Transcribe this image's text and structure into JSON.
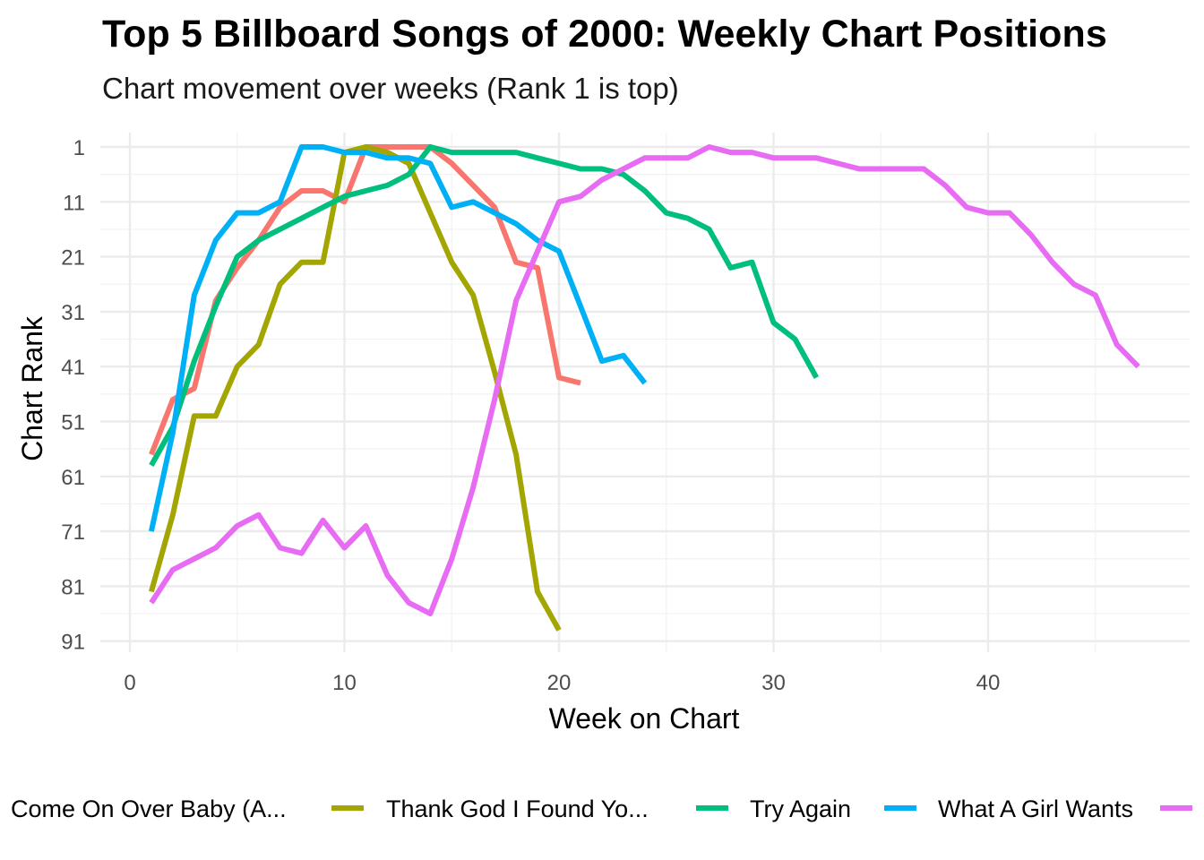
{
  "chart_data": {
    "type": "line",
    "title": "Top 5 Billboard Songs of 2000: Weekly Chart Positions",
    "subtitle": "Chart movement over weeks (Rank 1 is top)",
    "xlabel": "Week on Chart",
    "ylabel": "Chart Rank",
    "xlim": [
      -1,
      49
    ],
    "ylim": [
      93,
      -1
    ],
    "y_reversed": true,
    "x_ticks": [
      0,
      10,
      20,
      30,
      40
    ],
    "y_ticks": [
      1,
      11,
      21,
      31,
      41,
      51,
      61,
      71,
      81,
      91
    ],
    "grid": true,
    "legend_position": "bottom",
    "series": [
      {
        "name": "Come On Over Baby (A...",
        "color": "#F8766D",
        "x": [
          1,
          2,
          3,
          4,
          5,
          6,
          7,
          8,
          9,
          10,
          11,
          12,
          13,
          14,
          15,
          16,
          17,
          18,
          19,
          20,
          21
        ],
        "y": [
          57,
          47,
          45,
          29,
          23,
          18,
          12,
          9,
          9,
          11,
          1,
          1,
          1,
          1,
          4,
          8,
          12,
          22,
          23,
          43,
          44
        ]
      },
      {
        "name": "Thank God I Found Yo...",
        "color": "#A3A500",
        "x": [
          1,
          2,
          3,
          4,
          5,
          6,
          7,
          8,
          9,
          10,
          11,
          12,
          13,
          14,
          15,
          16,
          17,
          18,
          19,
          20
        ],
        "y": [
          82,
          68,
          50,
          50,
          41,
          37,
          26,
          22,
          22,
          2,
          1,
          2,
          4,
          13,
          22,
          28,
          42,
          57,
          82,
          89
        ]
      },
      {
        "name": "Try Again",
        "color": "#00BF7D",
        "x": [
          1,
          2,
          3,
          4,
          5,
          6,
          7,
          8,
          9,
          10,
          11,
          12,
          13,
          14,
          15,
          16,
          17,
          18,
          19,
          20,
          21,
          22,
          23,
          24,
          25,
          26,
          27,
          28,
          29,
          30,
          31,
          32
        ],
        "y": [
          59,
          52,
          40,
          30,
          21,
          18,
          16,
          14,
          12,
          10,
          9,
          8,
          6,
          1,
          2,
          2,
          2,
          2,
          3,
          4,
          5,
          5,
          6,
          9,
          13,
          14,
          16,
          23,
          22,
          33,
          36,
          43
        ]
      },
      {
        "name": "What A Girl Wants",
        "color": "#00B0F6",
        "x": [
          1,
          2,
          3,
          4,
          5,
          6,
          7,
          8,
          9,
          10,
          11,
          12,
          13,
          14,
          15,
          16,
          17,
          18,
          19,
          20,
          21,
          22,
          23,
          24
        ],
        "y": [
          71,
          53,
          28,
          18,
          13,
          13,
          11,
          1,
          1,
          2,
          2,
          3,
          3,
          4,
          12,
          11,
          13,
          15,
          18,
          20,
          30,
          40,
          39,
          44
        ]
      },
      {
        "name": "",
        "color": "#E76BF3",
        "x": [
          1,
          2,
          3,
          4,
          5,
          6,
          7,
          8,
          9,
          10,
          11,
          12,
          13,
          14,
          15,
          16,
          17,
          18,
          19,
          20,
          21,
          22,
          23,
          24,
          25,
          26,
          27,
          28,
          29,
          30,
          31,
          32,
          33,
          34,
          35,
          36,
          37,
          38,
          39,
          40,
          41,
          42,
          43,
          44,
          45,
          46,
          47
        ],
        "y": [
          84,
          78,
          76,
          74,
          70,
          68,
          74,
          75,
          69,
          74,
          70,
          79,
          84,
          86,
          76,
          63,
          47,
          29,
          20,
          11,
          10,
          7,
          5,
          3,
          3,
          3,
          1,
          2,
          2,
          3,
          3,
          3,
          4,
          5,
          5,
          5,
          5,
          8,
          12,
          13,
          13,
          17,
          22,
          26,
          28,
          37,
          41
        ]
      }
    ]
  }
}
